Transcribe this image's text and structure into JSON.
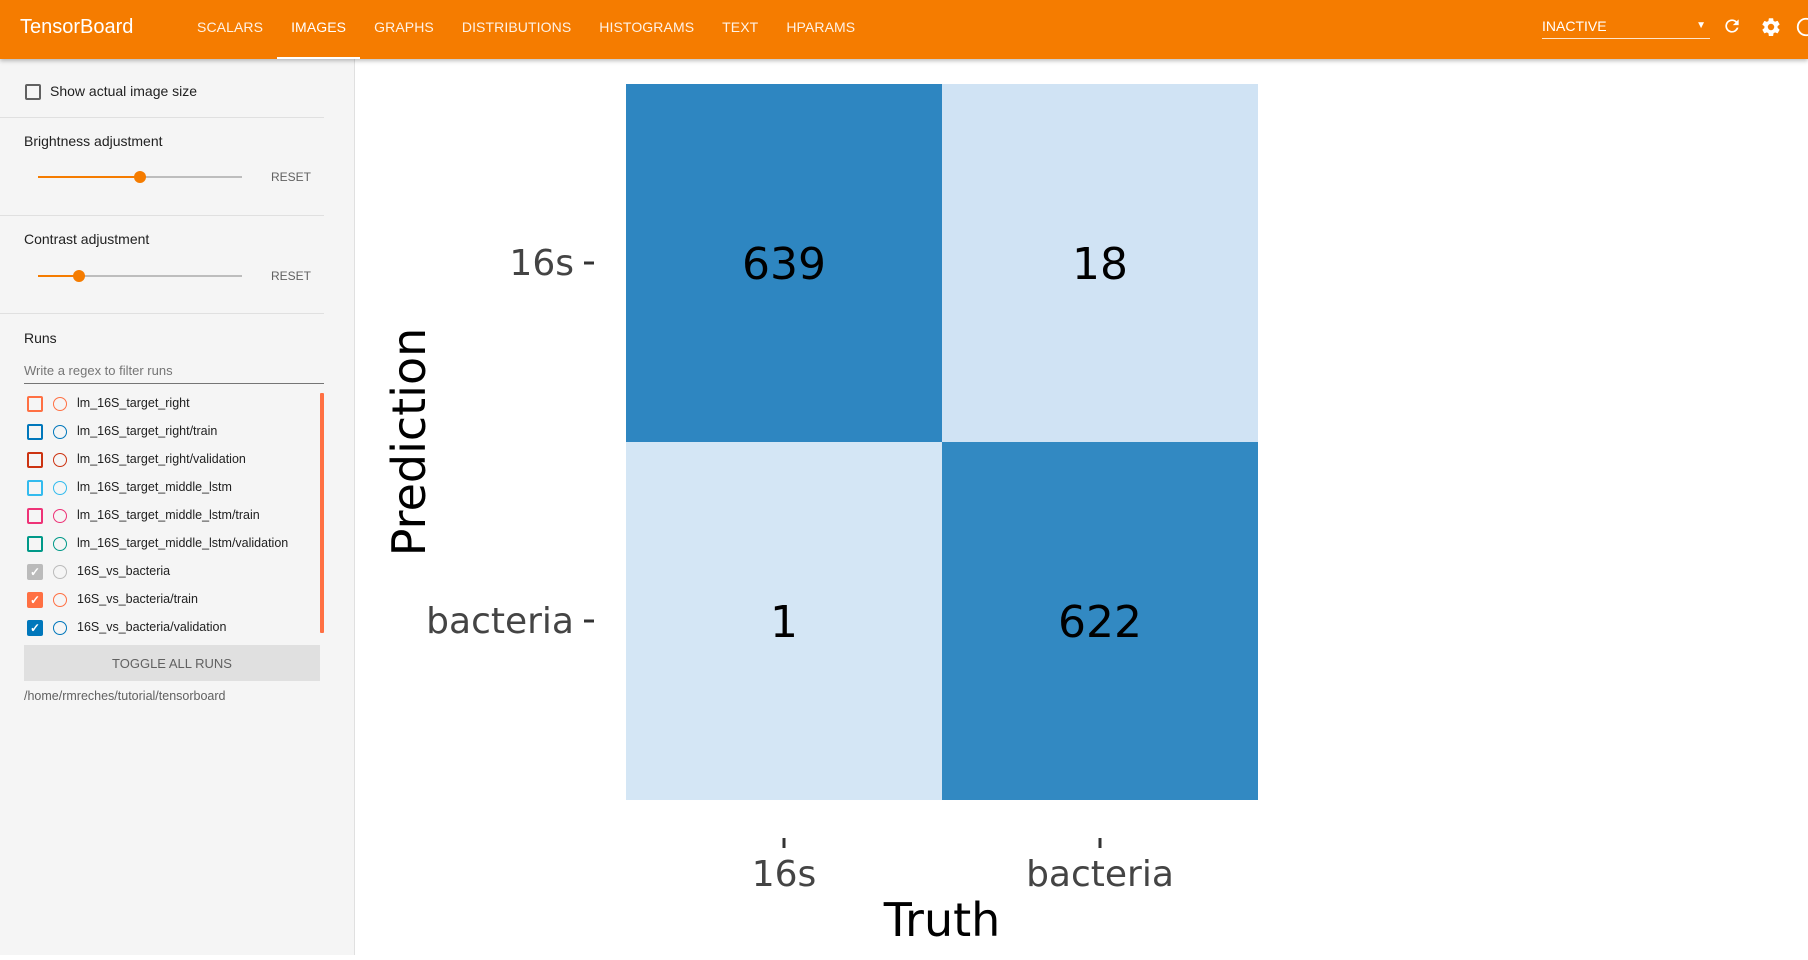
{
  "app": {
    "title": "TensorBoard"
  },
  "tabs": [
    {
      "label": "SCALARS",
      "active": false
    },
    {
      "label": "IMAGES",
      "active": true
    },
    {
      "label": "GRAPHS",
      "active": false
    },
    {
      "label": "DISTRIBUTIONS",
      "active": false
    },
    {
      "label": "HISTOGRAMS",
      "active": false
    },
    {
      "label": "TEXT",
      "active": false
    },
    {
      "label": "HPARAMS",
      "active": false
    }
  ],
  "status_select": {
    "value": "INACTIVE"
  },
  "toolbar_icons": [
    "refresh-icon",
    "settings-icon",
    "help-icon"
  ],
  "sidebar": {
    "show_actual_size": {
      "label": "Show actual image size",
      "checked": false
    },
    "brightness": {
      "label": "Brightness adjustment",
      "reset_label": "RESET",
      "value": 0.5
    },
    "contrast": {
      "label": "Contrast adjustment",
      "reset_label": "RESET",
      "value": 0.2
    },
    "runs": {
      "title": "Runs",
      "filter_placeholder": "Write a regex to filter runs",
      "items": [
        {
          "name": "lm_16S_target_right",
          "color": "#ff7043",
          "checked": false
        },
        {
          "name": "lm_16S_target_right/train",
          "color": "#0077bb",
          "checked": false
        },
        {
          "name": "lm_16S_target_right/validation",
          "color": "#cc3311",
          "checked": false
        },
        {
          "name": "lm_16S_target_middle_lstm",
          "color": "#33bbee",
          "checked": false
        },
        {
          "name": "lm_16S_target_middle_lstm/train",
          "color": "#ee3377",
          "checked": false
        },
        {
          "name": "lm_16S_target_middle_lstm/validation",
          "color": "#009988",
          "checked": false
        },
        {
          "name": "16S_vs_bacteria",
          "color": "#bbbbbb",
          "checked": true
        },
        {
          "name": "16S_vs_bacteria/train",
          "color": "#ff7043",
          "checked": true
        },
        {
          "name": "16S_vs_bacteria/validation",
          "color": "#0077bb",
          "checked": true
        }
      ],
      "toggle_label": "TOGGLE ALL RUNS",
      "logdir": "/home/rmreches/tutorial/tensorboard"
    }
  },
  "chart_data": {
    "type": "heatmap",
    "title": "",
    "xlabel": "Truth",
    "ylabel": "Prediction",
    "x_categories": [
      "16s",
      "bacteria"
    ],
    "y_categories": [
      "16s",
      "bacteria"
    ],
    "values": [
      [
        639,
        18
      ],
      [
        1,
        622
      ]
    ],
    "colors": {
      "high": "#2e86c1",
      "low": "#d4e6f5"
    }
  }
}
